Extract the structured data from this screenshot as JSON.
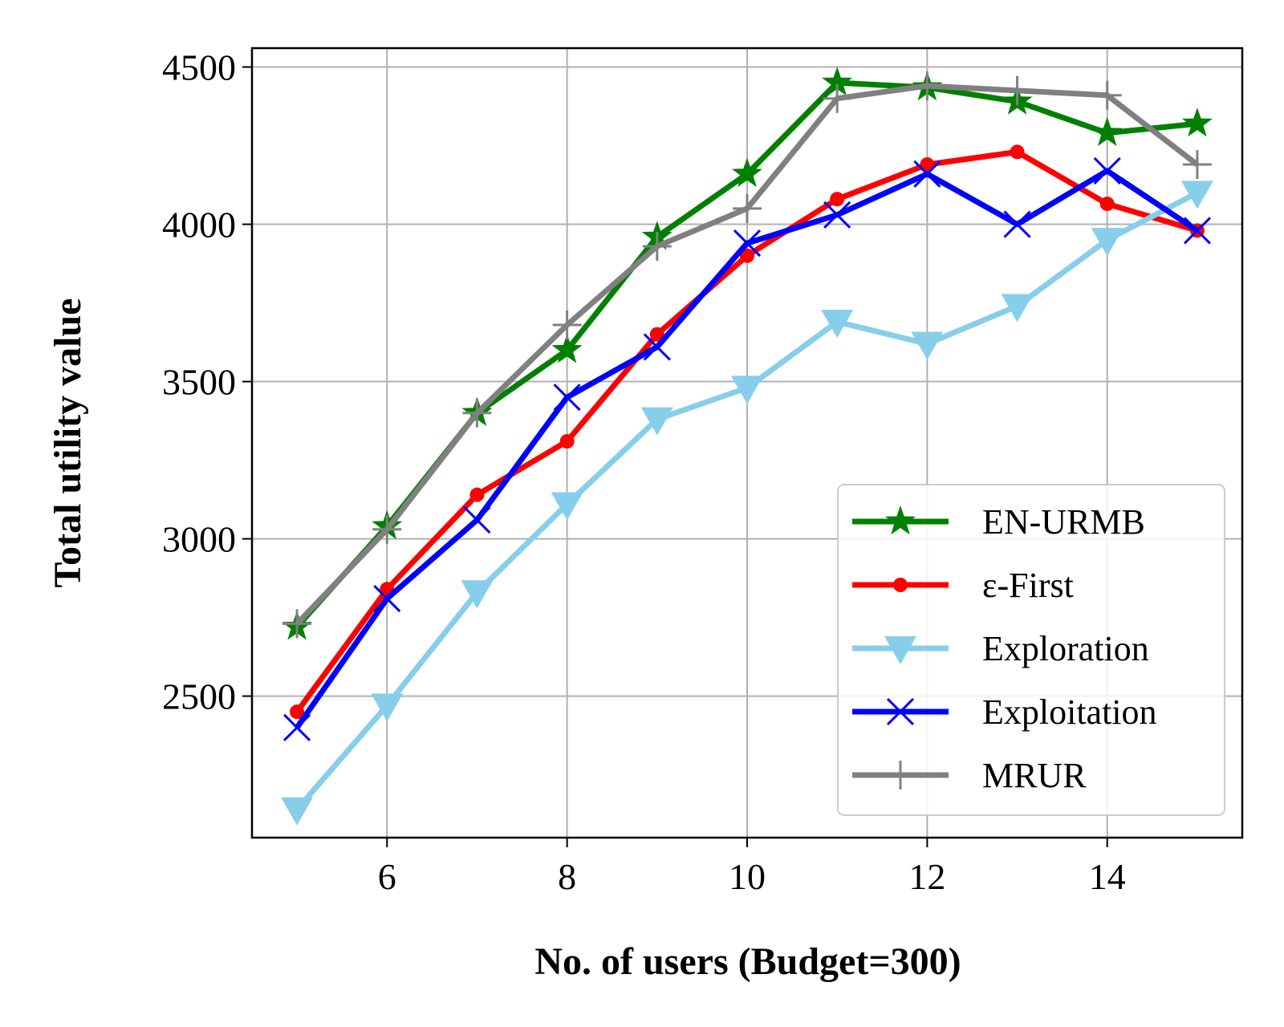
{
  "chart_data": {
    "type": "line",
    "xlabel": "No. of users (Budget=300)",
    "ylabel": "Total utility value",
    "x": [
      5,
      6,
      7,
      8,
      9,
      10,
      11,
      12,
      13,
      14,
      15
    ],
    "xlim": [
      4.5,
      15.5
    ],
    "ylim": [
      2050,
      4560
    ],
    "xticks": [
      6,
      8,
      10,
      12,
      14
    ],
    "yticks": [
      2500,
      3000,
      3500,
      4000,
      4500
    ],
    "grid": true,
    "legend_position": "lower-right",
    "series": [
      {
        "name": "EN-URMB",
        "color": "#008000",
        "marker": "star",
        "values": [
          2720,
          3040,
          3400,
          3600,
          3960,
          4160,
          4450,
          4435,
          4390,
          4290,
          4320
        ]
      },
      {
        "name": "ε-First",
        "color": "#ff0000",
        "marker": "dot",
        "values": [
          2450,
          2840,
          3140,
          3310,
          3650,
          3900,
          4080,
          4190,
          4230,
          4065,
          3980
        ]
      },
      {
        "name": "Exploration",
        "color": "#87ceeb",
        "marker": "triangle-down",
        "values": [
          2140,
          2470,
          2830,
          3110,
          3380,
          3480,
          3690,
          3620,
          3740,
          3950,
          4100
        ]
      },
      {
        "name": "Exploitation",
        "color": "#0000ff",
        "marker": "x",
        "values": [
          2400,
          2810,
          3060,
          3450,
          3610,
          3940,
          4030,
          4160,
          4000,
          4170,
          3980
        ]
      },
      {
        "name": "MRUR",
        "color": "#808080",
        "marker": "plus",
        "values": [
          2730,
          3030,
          3400,
          3680,
          3930,
          4050,
          4400,
          4440,
          4425,
          4410,
          4190
        ]
      }
    ]
  }
}
